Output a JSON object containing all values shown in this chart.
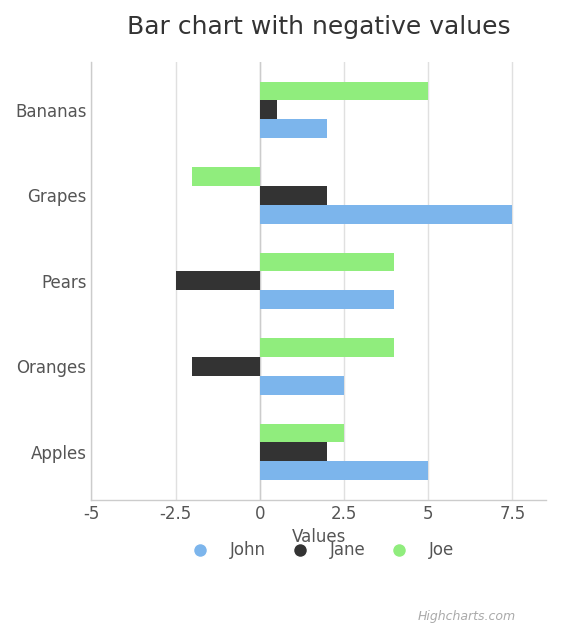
{
  "title": "Bar chart with negative values",
  "categories": [
    "Apples",
    "Oranges",
    "Pears",
    "Grapes",
    "Bananas"
  ],
  "series": [
    {
      "name": "John",
      "color": "#7cb5ec",
      "values": [
        5,
        2.5,
        4,
        7.5,
        2
      ]
    },
    {
      "name": "Jane",
      "color": "#333333",
      "values": [
        2,
        -2,
        -2.5,
        2,
        0.5
      ]
    },
    {
      "name": "Joe",
      "color": "#90ed7d",
      "values": [
        2.5,
        4,
        4,
        -2,
        5
      ]
    }
  ],
  "xlim": [
    -5,
    8.5
  ],
  "xticks": [
    -5,
    -2.5,
    0,
    2.5,
    5,
    7.5
  ],
  "xlabel": "Values",
  "background_color": "#ffffff",
  "plot_bg_color": "#ffffff",
  "grid_color": "#e0e0e0",
  "title_fontsize": 18,
  "axis_fontsize": 12,
  "legend_fontsize": 12
}
